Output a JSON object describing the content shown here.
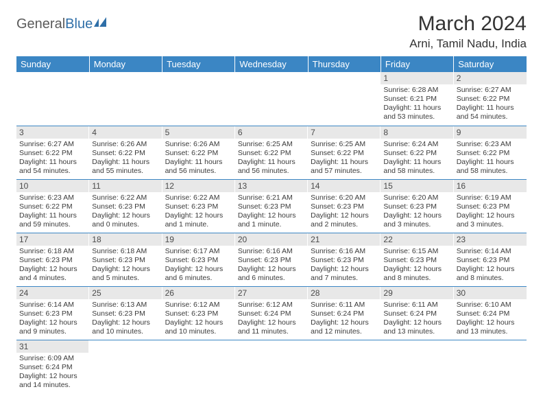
{
  "logo": {
    "general": "General",
    "blue": "Blue"
  },
  "title": "March 2024",
  "location": "Arni, Tamil Nadu, India",
  "colors": {
    "header_bg": "#3b86c4",
    "header_text": "#ffffff",
    "daynum_bg": "#e8e8e8",
    "row_border": "#3b86c4",
    "body_text": "#3a3a3a",
    "logo_gray": "#5a5a5a",
    "logo_blue": "#2f6fa8"
  },
  "weekdays": [
    "Sunday",
    "Monday",
    "Tuesday",
    "Wednesday",
    "Thursday",
    "Friday",
    "Saturday"
  ],
  "weeks": [
    [
      {
        "n": "",
        "sr": "",
        "ss": "",
        "dl": ""
      },
      {
        "n": "",
        "sr": "",
        "ss": "",
        "dl": ""
      },
      {
        "n": "",
        "sr": "",
        "ss": "",
        "dl": ""
      },
      {
        "n": "",
        "sr": "",
        "ss": "",
        "dl": ""
      },
      {
        "n": "",
        "sr": "",
        "ss": "",
        "dl": ""
      },
      {
        "n": "1",
        "sr": "Sunrise: 6:28 AM",
        "ss": "Sunset: 6:21 PM",
        "dl": "Daylight: 11 hours and 53 minutes."
      },
      {
        "n": "2",
        "sr": "Sunrise: 6:27 AM",
        "ss": "Sunset: 6:22 PM",
        "dl": "Daylight: 11 hours and 54 minutes."
      }
    ],
    [
      {
        "n": "3",
        "sr": "Sunrise: 6:27 AM",
        "ss": "Sunset: 6:22 PM",
        "dl": "Daylight: 11 hours and 54 minutes."
      },
      {
        "n": "4",
        "sr": "Sunrise: 6:26 AM",
        "ss": "Sunset: 6:22 PM",
        "dl": "Daylight: 11 hours and 55 minutes."
      },
      {
        "n": "5",
        "sr": "Sunrise: 6:26 AM",
        "ss": "Sunset: 6:22 PM",
        "dl": "Daylight: 11 hours and 56 minutes."
      },
      {
        "n": "6",
        "sr": "Sunrise: 6:25 AM",
        "ss": "Sunset: 6:22 PM",
        "dl": "Daylight: 11 hours and 56 minutes."
      },
      {
        "n": "7",
        "sr": "Sunrise: 6:25 AM",
        "ss": "Sunset: 6:22 PM",
        "dl": "Daylight: 11 hours and 57 minutes."
      },
      {
        "n": "8",
        "sr": "Sunrise: 6:24 AM",
        "ss": "Sunset: 6:22 PM",
        "dl": "Daylight: 11 hours and 58 minutes."
      },
      {
        "n": "9",
        "sr": "Sunrise: 6:23 AM",
        "ss": "Sunset: 6:22 PM",
        "dl": "Daylight: 11 hours and 58 minutes."
      }
    ],
    [
      {
        "n": "10",
        "sr": "Sunrise: 6:23 AM",
        "ss": "Sunset: 6:22 PM",
        "dl": "Daylight: 11 hours and 59 minutes."
      },
      {
        "n": "11",
        "sr": "Sunrise: 6:22 AM",
        "ss": "Sunset: 6:23 PM",
        "dl": "Daylight: 12 hours and 0 minutes."
      },
      {
        "n": "12",
        "sr": "Sunrise: 6:22 AM",
        "ss": "Sunset: 6:23 PM",
        "dl": "Daylight: 12 hours and 1 minute."
      },
      {
        "n": "13",
        "sr": "Sunrise: 6:21 AM",
        "ss": "Sunset: 6:23 PM",
        "dl": "Daylight: 12 hours and 1 minute."
      },
      {
        "n": "14",
        "sr": "Sunrise: 6:20 AM",
        "ss": "Sunset: 6:23 PM",
        "dl": "Daylight: 12 hours and 2 minutes."
      },
      {
        "n": "15",
        "sr": "Sunrise: 6:20 AM",
        "ss": "Sunset: 6:23 PM",
        "dl": "Daylight: 12 hours and 3 minutes."
      },
      {
        "n": "16",
        "sr": "Sunrise: 6:19 AM",
        "ss": "Sunset: 6:23 PM",
        "dl": "Daylight: 12 hours and 3 minutes."
      }
    ],
    [
      {
        "n": "17",
        "sr": "Sunrise: 6:18 AM",
        "ss": "Sunset: 6:23 PM",
        "dl": "Daylight: 12 hours and 4 minutes."
      },
      {
        "n": "18",
        "sr": "Sunrise: 6:18 AM",
        "ss": "Sunset: 6:23 PM",
        "dl": "Daylight: 12 hours and 5 minutes."
      },
      {
        "n": "19",
        "sr": "Sunrise: 6:17 AM",
        "ss": "Sunset: 6:23 PM",
        "dl": "Daylight: 12 hours and 6 minutes."
      },
      {
        "n": "20",
        "sr": "Sunrise: 6:16 AM",
        "ss": "Sunset: 6:23 PM",
        "dl": "Daylight: 12 hours and 6 minutes."
      },
      {
        "n": "21",
        "sr": "Sunrise: 6:16 AM",
        "ss": "Sunset: 6:23 PM",
        "dl": "Daylight: 12 hours and 7 minutes."
      },
      {
        "n": "22",
        "sr": "Sunrise: 6:15 AM",
        "ss": "Sunset: 6:23 PM",
        "dl": "Daylight: 12 hours and 8 minutes."
      },
      {
        "n": "23",
        "sr": "Sunrise: 6:14 AM",
        "ss": "Sunset: 6:23 PM",
        "dl": "Daylight: 12 hours and 8 minutes."
      }
    ],
    [
      {
        "n": "24",
        "sr": "Sunrise: 6:14 AM",
        "ss": "Sunset: 6:23 PM",
        "dl": "Daylight: 12 hours and 9 minutes."
      },
      {
        "n": "25",
        "sr": "Sunrise: 6:13 AM",
        "ss": "Sunset: 6:23 PM",
        "dl": "Daylight: 12 hours and 10 minutes."
      },
      {
        "n": "26",
        "sr": "Sunrise: 6:12 AM",
        "ss": "Sunset: 6:23 PM",
        "dl": "Daylight: 12 hours and 10 minutes."
      },
      {
        "n": "27",
        "sr": "Sunrise: 6:12 AM",
        "ss": "Sunset: 6:24 PM",
        "dl": "Daylight: 12 hours and 11 minutes."
      },
      {
        "n": "28",
        "sr": "Sunrise: 6:11 AM",
        "ss": "Sunset: 6:24 PM",
        "dl": "Daylight: 12 hours and 12 minutes."
      },
      {
        "n": "29",
        "sr": "Sunrise: 6:11 AM",
        "ss": "Sunset: 6:24 PM",
        "dl": "Daylight: 12 hours and 13 minutes."
      },
      {
        "n": "30",
        "sr": "Sunrise: 6:10 AM",
        "ss": "Sunset: 6:24 PM",
        "dl": "Daylight: 12 hours and 13 minutes."
      }
    ],
    [
      {
        "n": "31",
        "sr": "Sunrise: 6:09 AM",
        "ss": "Sunset: 6:24 PM",
        "dl": "Daylight: 12 hours and 14 minutes."
      },
      {
        "n": "",
        "sr": "",
        "ss": "",
        "dl": ""
      },
      {
        "n": "",
        "sr": "",
        "ss": "",
        "dl": ""
      },
      {
        "n": "",
        "sr": "",
        "ss": "",
        "dl": ""
      },
      {
        "n": "",
        "sr": "",
        "ss": "",
        "dl": ""
      },
      {
        "n": "",
        "sr": "",
        "ss": "",
        "dl": ""
      },
      {
        "n": "",
        "sr": "",
        "ss": "",
        "dl": ""
      }
    ]
  ]
}
